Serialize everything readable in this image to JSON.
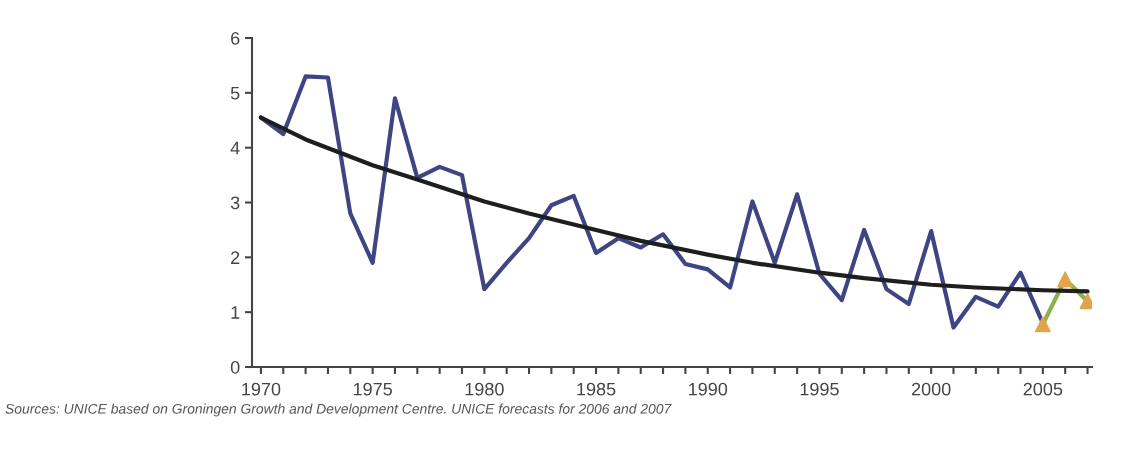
{
  "chart_data": {
    "type": "line",
    "series": [
      {
        "color": "#3f4582",
        "x": [
          1970,
          1971,
          1972,
          1973,
          1974,
          1975,
          1976,
          1977,
          1978,
          1979,
          1980,
          1981,
          1982,
          1983,
          1984,
          1985,
          1986,
          1987,
          1988,
          1989,
          1990,
          1991,
          1992,
          1993,
          1994,
          1995,
          1996,
          1997,
          1998,
          1999,
          2000,
          2001,
          2002,
          2003,
          2004,
          2005
        ],
        "values": [
          4.55,
          4.25,
          5.3,
          5.28,
          2.8,
          1.9,
          4.9,
          3.45,
          3.65,
          3.5,
          1.42,
          1.9,
          2.35,
          2.95,
          3.12,
          2.08,
          2.35,
          2.18,
          2.42,
          1.88,
          1.78,
          1.45,
          3.02,
          1.9,
          3.15,
          1.7,
          1.22,
          2.5,
          1.42,
          1.15,
          2.48,
          0.72,
          1.28,
          1.1,
          1.72,
          0.8
        ]
      },
      {
        "color": "#8db04a",
        "x": [
          2005,
          2006,
          2007
        ],
        "values": [
          0.78,
          1.6,
          1.2
        ]
      },
      {
        "type": "scatter",
        "marker": "triangle",
        "color": "#e0a44a",
        "x": [
          2005,
          2006,
          2007
        ],
        "values": [
          0.78,
          1.6,
          1.2
        ]
      },
      {
        "color": "#1e1e1e",
        "x": [
          1970,
          1972,
          1975,
          1977,
          1980,
          1982,
          1985,
          1987,
          1990,
          1992,
          1995,
          1997,
          2000,
          2002,
          2005,
          2007
        ],
        "values": [
          4.55,
          4.15,
          3.68,
          3.42,
          3.02,
          2.8,
          2.5,
          2.3,
          2.05,
          1.9,
          1.72,
          1.62,
          1.5,
          1.45,
          1.4,
          1.38
        ]
      }
    ],
    "xlim": [
      1969.6,
      2007.2
    ],
    "xticks": [
      1970,
      {
        "value": 1971,
        "label": null
      },
      {
        "value": 1972,
        "label": null
      },
      {
        "value": 1973,
        "label": null
      },
      {
        "value": 1974,
        "label": null
      },
      1975,
      {
        "value": 1976,
        "label": null
      },
      {
        "value": 1977,
        "label": null
      },
      {
        "value": 1978,
        "label": null
      },
      {
        "value": 1979,
        "label": null
      },
      1980,
      {
        "value": 1981,
        "label": null
      },
      {
        "value": 1982,
        "label": null
      },
      {
        "value": 1983,
        "label": null
      },
      {
        "value": 1984,
        "label": null
      },
      1985,
      {
        "value": 1986,
        "label": null
      },
      {
        "value": 1987,
        "label": null
      },
      {
        "value": 1988,
        "label": null
      },
      {
        "value": 1989,
        "label": null
      },
      1990,
      {
        "value": 1991,
        "label": null
      },
      {
        "value": 1992,
        "label": null
      },
      {
        "value": 1993,
        "label": null
      },
      {
        "value": 1994,
        "label": null
      },
      1995,
      {
        "value": 1996,
        "label": null
      },
      {
        "value": 1997,
        "label": null
      },
      {
        "value": 1998,
        "label": null
      },
      {
        "value": 1999,
        "label": null
      },
      2000,
      {
        "value": 2001,
        "label": null
      },
      {
        "value": 2002,
        "label": null
      },
      {
        "value": 2003,
        "label": null
      },
      {
        "value": 2004,
        "label": null
      },
      2005,
      {
        "value": 2006,
        "label": null
      },
      {
        "value": 2007,
        "label": null
      }
    ],
    "ylim": [
      0,
      6
    ],
    "yticks": [
      0,
      1,
      2,
      3,
      4,
      5,
      6
    ],
    "grid": false,
    "annotations": [
      "Sources: UNICE based on Groningen Growth and Development Centre. UNICE forecasts for 2006 and 2007"
    ]
  }
}
